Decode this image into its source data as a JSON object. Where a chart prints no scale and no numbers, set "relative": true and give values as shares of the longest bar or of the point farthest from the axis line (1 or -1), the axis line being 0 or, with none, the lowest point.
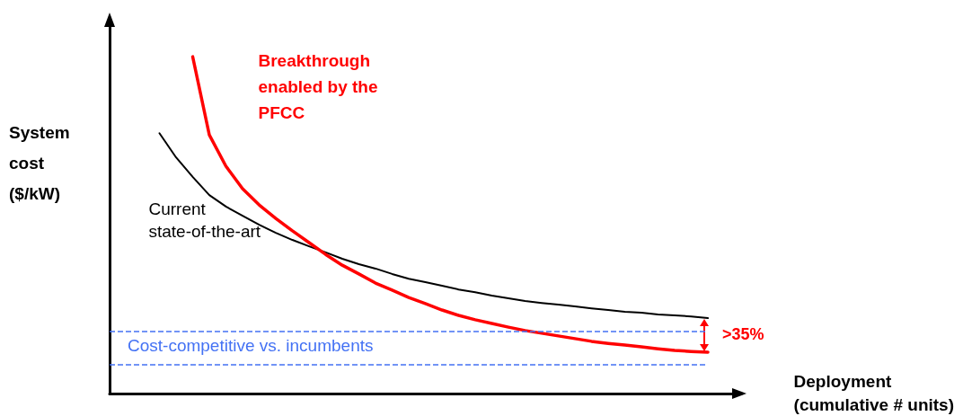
{
  "chart_data": {
    "type": "line",
    "relative": true,
    "xlabel": "Deployment\n(cumulative # units)",
    "ylabel": "System\ncost\n($/kW)",
    "categories": [
      null,
      null,
      null,
      null,
      null,
      null,
      null,
      null,
      null,
      null,
      null,
      null,
      null,
      null,
      null,
      null,
      null,
      null,
      null,
      null,
      null,
      null,
      null,
      null,
      null,
      null,
      null,
      null,
      null,
      null,
      null,
      null,
      null,
      null,
      null,
      null,
      null,
      null,
      null
    ],
    "series": [
      {
        "name": "Current state-of-the-art",
        "color": "#000000",
        "values": [
          null,
          null,
          null,
          0.773,
          0.701,
          0.643,
          0.589,
          0.555,
          0.528,
          0.501,
          0.477,
          0.456,
          0.437,
          0.419,
          0.4,
          0.384,
          0.371,
          0.355,
          0.341,
          0.331,
          0.32,
          0.309,
          0.301,
          0.291,
          0.283,
          0.275,
          0.269,
          0.264,
          0.259,
          0.253,
          0.248,
          0.243,
          0.24,
          0.235,
          0.232,
          0.229,
          0.224,
          null,
          null
        ]
      },
      {
        "name": "Breakthrough enabled by the PFCC",
        "color": "#ff0000",
        "values": [
          null,
          null,
          null,
          null,
          null,
          1.0,
          0.768,
          0.675,
          0.608,
          0.56,
          0.52,
          0.483,
          0.448,
          0.413,
          0.381,
          0.355,
          0.328,
          0.307,
          0.285,
          0.267,
          0.248,
          0.232,
          0.219,
          0.208,
          0.197,
          0.187,
          0.179,
          0.171,
          0.163,
          0.155,
          0.149,
          0.144,
          0.139,
          0.133,
          0.128,
          0.125,
          0.123,
          null,
          null
        ]
      }
    ],
    "ref_lines": [
      {
        "axis": "y",
        "value": 0.184,
        "label": "Cost-competitive vs. incumbents",
        "color": "#4472f4",
        "line_style": "dashed"
      },
      {
        "axis": "y",
        "value": 0.085,
        "label": null,
        "color": "#4472f4",
        "line_style": "dashed"
      }
    ],
    "annotations": [
      ">35%"
    ],
    "legend": false,
    "grid": false,
    "marker": "none",
    "line_style": "solid"
  }
}
